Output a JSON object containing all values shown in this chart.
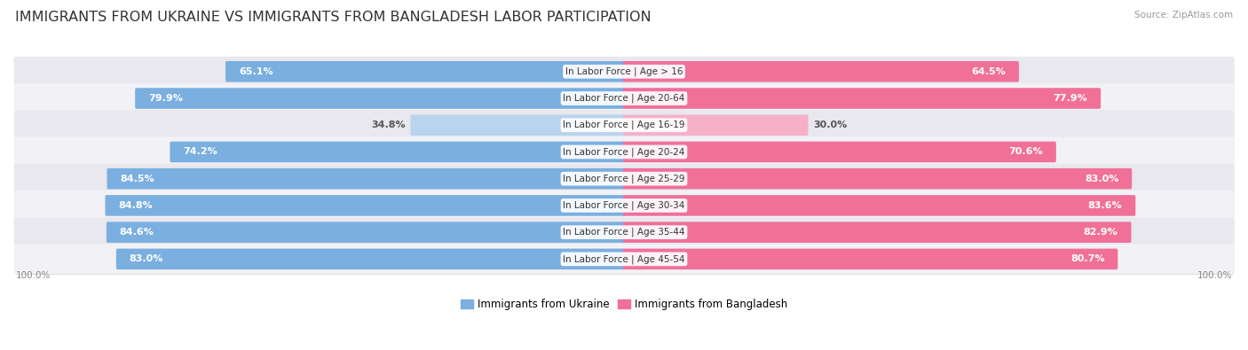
{
  "title": "IMMIGRANTS FROM UKRAINE VS IMMIGRANTS FROM BANGLADESH LABOR PARTICIPATION",
  "source": "Source: ZipAtlas.com",
  "categories": [
    "In Labor Force | Age > 16",
    "In Labor Force | Age 20-64",
    "In Labor Force | Age 16-19",
    "In Labor Force | Age 20-24",
    "In Labor Force | Age 25-29",
    "In Labor Force | Age 30-34",
    "In Labor Force | Age 35-44",
    "In Labor Force | Age 45-54"
  ],
  "ukraine_values": [
    65.1,
    79.9,
    34.8,
    74.2,
    84.5,
    84.8,
    84.6,
    83.0
  ],
  "bangladesh_values": [
    64.5,
    77.9,
    30.0,
    70.6,
    83.0,
    83.6,
    82.9,
    80.7
  ],
  "ukraine_color": "#7aafe0",
  "ukraine_color_light": "#b8d4ee",
  "bangladesh_color": "#f07098",
  "bangladesh_color_light": "#f5b0c8",
  "row_bg_color": "#e8e8ee",
  "row_bg_color2": "#f2f2f6",
  "max_value": 100.0,
  "legend_ukraine": "Immigrants from Ukraine",
  "legend_bangladesh": "Immigrants from Bangladesh",
  "axis_label_left": "100.0%",
  "axis_label_right": "100.0%",
  "title_fontsize": 11.5,
  "value_fontsize": 8.0,
  "category_fontsize": 7.5
}
